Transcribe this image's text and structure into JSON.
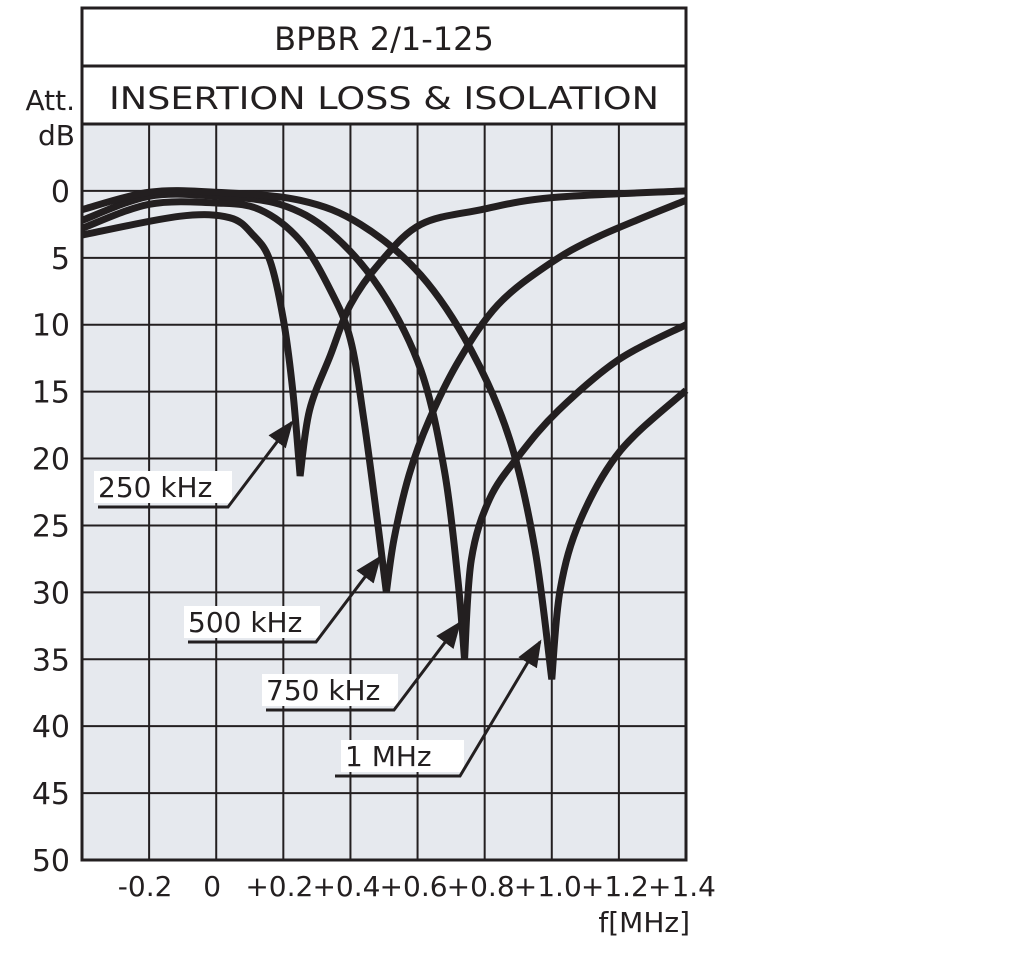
{
  "chart_data": {
    "type": "line",
    "title": "BPBR 2/1-125",
    "subtitle": "INSERTION LOSS & ISOLATION",
    "ylabel": [
      "Att.",
      "dB"
    ],
    "xlabel": "f[MHz]",
    "xlim": [
      -0.4,
      1.4
    ],
    "ylim": [
      -5,
      50
    ],
    "y_inverted": true,
    "grid": true,
    "x_ticks": [
      -0.2,
      0,
      0.2,
      0.4,
      0.6,
      0.8,
      1.0,
      1.2,
      1.4
    ],
    "x_tick_labels": [
      "-0.2",
      "0",
      "+0.2",
      "+0.4",
      "+0.6",
      "+0.8",
      "+1.0",
      "+1.2",
      "+1.4"
    ],
    "y_ticks": [
      0,
      5,
      10,
      15,
      20,
      25,
      30,
      35,
      40,
      45,
      50
    ],
    "y_tick_labels": [
      "0",
      "5",
      "10",
      "15",
      "20",
      "25",
      "30",
      "35",
      "40",
      "45",
      "50"
    ],
    "colors": {
      "plot_background": "#e6e9ee",
      "line": "#231f20"
    },
    "series": [
      {
        "name": "250 kHz",
        "notch_MHz": 0.25,
        "points": [
          [
            -0.4,
            3.3
          ],
          [
            -0.11,
            1.9
          ],
          [
            0.04,
            2.0
          ],
          [
            0.11,
            3.3
          ],
          [
            0.16,
            5.2
          ],
          [
            0.2,
            9.6
          ],
          [
            0.228,
            14.9
          ],
          [
            0.25,
            21.3
          ],
          [
            0.278,
            16.4
          ],
          [
            0.34,
            12.3
          ],
          [
            0.4,
            8.5
          ],
          [
            0.49,
            5.3
          ],
          [
            0.61,
            2.5
          ],
          [
            0.79,
            1.4
          ],
          [
            1.0,
            0.5
          ],
          [
            1.4,
            0.0
          ]
        ]
      },
      {
        "name": "500 kHz",
        "notch_MHz": 0.5,
        "points": [
          [
            -0.4,
            2.8
          ],
          [
            -0.2,
            1.0
          ],
          [
            0.0,
            0.9
          ],
          [
            0.13,
            1.4
          ],
          [
            0.25,
            3.7
          ],
          [
            0.34,
            7.4
          ],
          [
            0.4,
            11.1
          ],
          [
            0.44,
            17.1
          ],
          [
            0.48,
            24.6
          ],
          [
            0.507,
            30.0
          ],
          [
            0.53,
            26.0
          ],
          [
            0.575,
            21.2
          ],
          [
            0.635,
            17.1
          ],
          [
            0.725,
            12.6
          ],
          [
            0.84,
            8.5
          ],
          [
            0.99,
            5.5
          ],
          [
            1.14,
            3.4
          ],
          [
            1.4,
            0.7
          ]
        ]
      },
      {
        "name": "750 kHz",
        "notch_MHz": 0.75,
        "points": [
          [
            -0.4,
            2.2
          ],
          [
            -0.2,
            0.4
          ],
          [
            0.0,
            0.4
          ],
          [
            0.19,
            1.0
          ],
          [
            0.34,
            3.1
          ],
          [
            0.49,
            7.4
          ],
          [
            0.61,
            13.4
          ],
          [
            0.68,
            20.9
          ],
          [
            0.72,
            29.0
          ],
          [
            0.74,
            35.0
          ],
          [
            0.76,
            27.6
          ],
          [
            0.815,
            23.0
          ],
          [
            0.905,
            19.7
          ],
          [
            1.02,
            16.4
          ],
          [
            1.2,
            12.6
          ],
          [
            1.4,
            10.0
          ]
        ]
      },
      {
        "name": "1 MHz",
        "notch_MHz": 1.0,
        "points": [
          [
            -0.4,
            1.4
          ],
          [
            -0.2,
            0.1
          ],
          [
            0.0,
            0.1
          ],
          [
            0.25,
            0.7
          ],
          [
            0.43,
            2.5
          ],
          [
            0.61,
            6.3
          ],
          [
            0.76,
            11.9
          ],
          [
            0.875,
            18.6
          ],
          [
            0.95,
            26.8
          ],
          [
            1.0,
            36.5
          ],
          [
            1.025,
            29.8
          ],
          [
            1.085,
            24.6
          ],
          [
            1.205,
            19.4
          ],
          [
            1.4,
            14.9
          ]
        ]
      }
    ],
    "annotations": [
      {
        "text": "250 kHz",
        "target": [
          0.225,
          17.3
        ]
      },
      {
        "text": "500 kHz",
        "target": [
          0.487,
          27.4
        ]
      },
      {
        "text": "750 kHz",
        "target": [
          0.725,
          32.3
        ]
      },
      {
        "text": "1 MHz",
        "target": [
          0.965,
          33.7
        ]
      }
    ]
  }
}
